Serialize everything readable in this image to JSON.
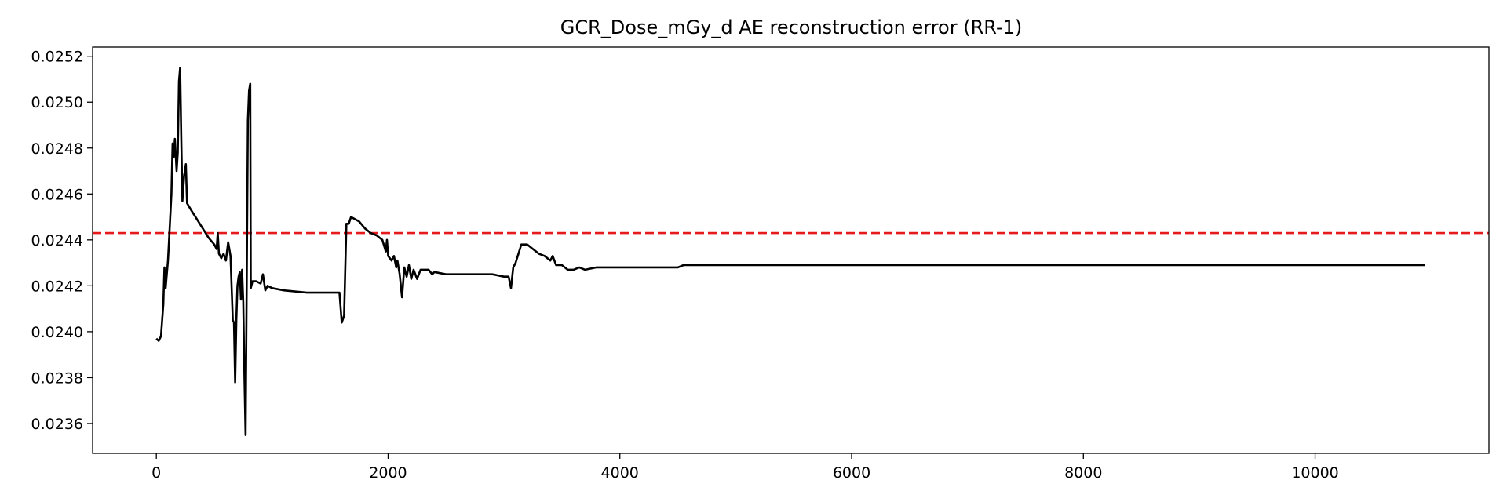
{
  "chart_data": {
    "type": "line",
    "title": "GCR_Dose_mGy_d AE reconstruction error (RR-1)",
    "xlabel": "",
    "ylabel": "",
    "xlim": [
      -550,
      11500
    ],
    "ylim": [
      0.02347,
      0.02524
    ],
    "grid": false,
    "x_ticks": [
      0,
      2000,
      4000,
      6000,
      8000,
      10000
    ],
    "y_ticks": [
      0.0236,
      0.0238,
      0.024,
      0.0242,
      0.0244,
      0.0246,
      0.0248,
      0.025,
      0.0252
    ],
    "x_tick_labels": [
      "0",
      "2000",
      "4000",
      "6000",
      "8000",
      "10000"
    ],
    "y_tick_labels": [
      "0.0236",
      "0.0238",
      "0.0240",
      "0.0242",
      "0.0244",
      "0.0246",
      "0.0248",
      "0.0250",
      "0.0252"
    ],
    "threshold": {
      "value": 0.02443,
      "color": "#e41a1c",
      "style": "dashed"
    },
    "series": [
      {
        "color": "#000000",
        "points": [
          [
            0,
            0.02397
          ],
          [
            20,
            0.02396
          ],
          [
            40,
            0.02398
          ],
          [
            60,
            0.02412
          ],
          [
            70,
            0.02428
          ],
          [
            80,
            0.02419
          ],
          [
            100,
            0.02431
          ],
          [
            110,
            0.0244
          ],
          [
            130,
            0.0246
          ],
          [
            140,
            0.02482
          ],
          [
            150,
            0.02476
          ],
          [
            160,
            0.02484
          ],
          [
            175,
            0.0247
          ],
          [
            185,
            0.02478
          ],
          [
            195,
            0.02509
          ],
          [
            205,
            0.02515
          ],
          [
            215,
            0.02485
          ],
          [
            225,
            0.02457
          ],
          [
            240,
            0.02468
          ],
          [
            255,
            0.02473
          ],
          [
            265,
            0.02456
          ],
          [
            300,
            0.02453
          ],
          [
            350,
            0.02449
          ],
          [
            400,
            0.02445
          ],
          [
            450,
            0.02441
          ],
          [
            500,
            0.02438
          ],
          [
            520,
            0.02436
          ],
          [
            530,
            0.02443
          ],
          [
            540,
            0.02434
          ],
          [
            560,
            0.02432
          ],
          [
            580,
            0.02434
          ],
          [
            600,
            0.02431
          ],
          [
            620,
            0.02439
          ],
          [
            640,
            0.02433
          ],
          [
            660,
            0.02405
          ],
          [
            670,
            0.02404
          ],
          [
            680,
            0.02378
          ],
          [
            690,
            0.02405
          ],
          [
            700,
            0.0242
          ],
          [
            710,
            0.02424
          ],
          [
            720,
            0.02426
          ],
          [
            730,
            0.02414
          ],
          [
            740,
            0.02427
          ],
          [
            750,
            0.02413
          ],
          [
            760,
            0.02381
          ],
          [
            770,
            0.02355
          ],
          [
            780,
            0.02425
          ],
          [
            790,
            0.02492
          ],
          [
            800,
            0.02505
          ],
          [
            810,
            0.02508
          ],
          [
            815,
            0.02419
          ],
          [
            830,
            0.02422
          ],
          [
            860,
            0.02422
          ],
          [
            900,
            0.02421
          ],
          [
            920,
            0.02425
          ],
          [
            940,
            0.02418
          ],
          [
            960,
            0.0242
          ],
          [
            1000,
            0.02419
          ],
          [
            1100,
            0.02418
          ],
          [
            1300,
            0.02417
          ],
          [
            1400,
            0.02417
          ],
          [
            1500,
            0.02417
          ],
          [
            1580,
            0.02417
          ],
          [
            1600,
            0.02404
          ],
          [
            1620,
            0.02407
          ],
          [
            1640,
            0.02447
          ],
          [
            1660,
            0.02447
          ],
          [
            1680,
            0.0245
          ],
          [
            1750,
            0.02448
          ],
          [
            1800,
            0.02445
          ],
          [
            1850,
            0.02443
          ],
          [
            1900,
            0.02442
          ],
          [
            1950,
            0.0244
          ],
          [
            1980,
            0.02435
          ],
          [
            1990,
            0.0244
          ],
          [
            2000,
            0.02433
          ],
          [
            2030,
            0.02431
          ],
          [
            2050,
            0.02433
          ],
          [
            2070,
            0.02428
          ],
          [
            2080,
            0.02431
          ],
          [
            2100,
            0.02425
          ],
          [
            2120,
            0.02415
          ],
          [
            2140,
            0.02428
          ],
          [
            2160,
            0.02424
          ],
          [
            2180,
            0.02429
          ],
          [
            2200,
            0.02423
          ],
          [
            2220,
            0.02427
          ],
          [
            2250,
            0.02423
          ],
          [
            2280,
            0.02427
          ],
          [
            2350,
            0.02427
          ],
          [
            2380,
            0.02425
          ],
          [
            2400,
            0.02426
          ],
          [
            2500,
            0.02425
          ],
          [
            2700,
            0.02425
          ],
          [
            2900,
            0.02425
          ],
          [
            3000,
            0.02424
          ],
          [
            3040,
            0.02424
          ],
          [
            3060,
            0.02419
          ],
          [
            3080,
            0.02428
          ],
          [
            3100,
            0.0243
          ],
          [
            3150,
            0.02438
          ],
          [
            3200,
            0.02438
          ],
          [
            3250,
            0.02436
          ],
          [
            3300,
            0.02434
          ],
          [
            3350,
            0.02433
          ],
          [
            3400,
            0.02431
          ],
          [
            3420,
            0.02433
          ],
          [
            3450,
            0.02429
          ],
          [
            3500,
            0.02429
          ],
          [
            3550,
            0.02427
          ],
          [
            3600,
            0.02427
          ],
          [
            3650,
            0.02428
          ],
          [
            3700,
            0.02427
          ],
          [
            3800,
            0.02428
          ],
          [
            3900,
            0.02428
          ],
          [
            4000,
            0.02428
          ],
          [
            4200,
            0.02428
          ],
          [
            4400,
            0.02428
          ],
          [
            4500,
            0.02428
          ],
          [
            4550,
            0.02429
          ],
          [
            4800,
            0.02429
          ],
          [
            5000,
            0.02429
          ],
          [
            5200,
            0.02429
          ],
          [
            6000,
            0.02429
          ],
          [
            6600,
            0.02429
          ],
          [
            6700,
            0.02429
          ],
          [
            7000,
            0.02429
          ],
          [
            8000,
            0.02429
          ],
          [
            8200,
            0.02429
          ],
          [
            9000,
            0.02429
          ],
          [
            9500,
            0.02429
          ],
          [
            9600,
            0.02429
          ],
          [
            10000,
            0.02429
          ],
          [
            10500,
            0.02429
          ],
          [
            10950,
            0.02429
          ]
        ]
      }
    ]
  }
}
